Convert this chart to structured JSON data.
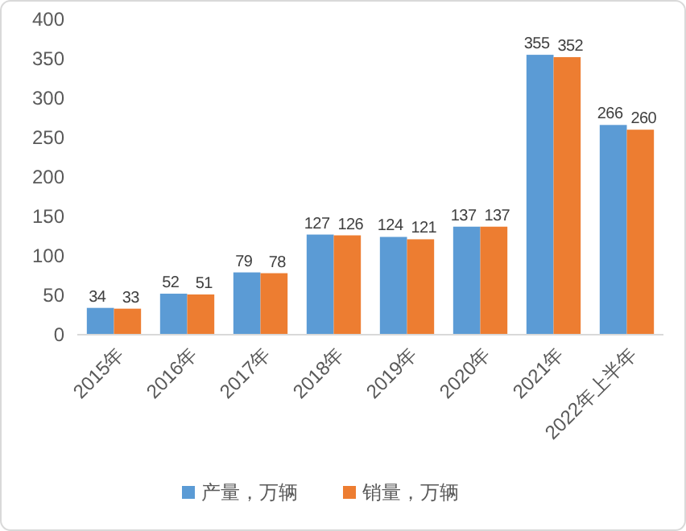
{
  "chart_data": {
    "type": "bar",
    "categories": [
      "2015年",
      "2016年",
      "2017年",
      "2018年",
      "2019年",
      "2020年",
      "2021年",
      "2022年上半年"
    ],
    "series": [
      {
        "name": "产量，万辆",
        "color": "#5b9bd5",
        "values": [
          34,
          52,
          79,
          127,
          124,
          137,
          355,
          266
        ]
      },
      {
        "name": "销量，万辆",
        "color": "#ed7d31",
        "values": [
          33,
          51,
          78,
          126,
          121,
          137,
          352,
          260
        ]
      }
    ],
    "ylim": [
      0,
      400
    ],
    "yticks": [
      0,
      50,
      100,
      150,
      200,
      250,
      300,
      350,
      400
    ],
    "data_labels": true,
    "legend": "bottom",
    "grid": false
  }
}
